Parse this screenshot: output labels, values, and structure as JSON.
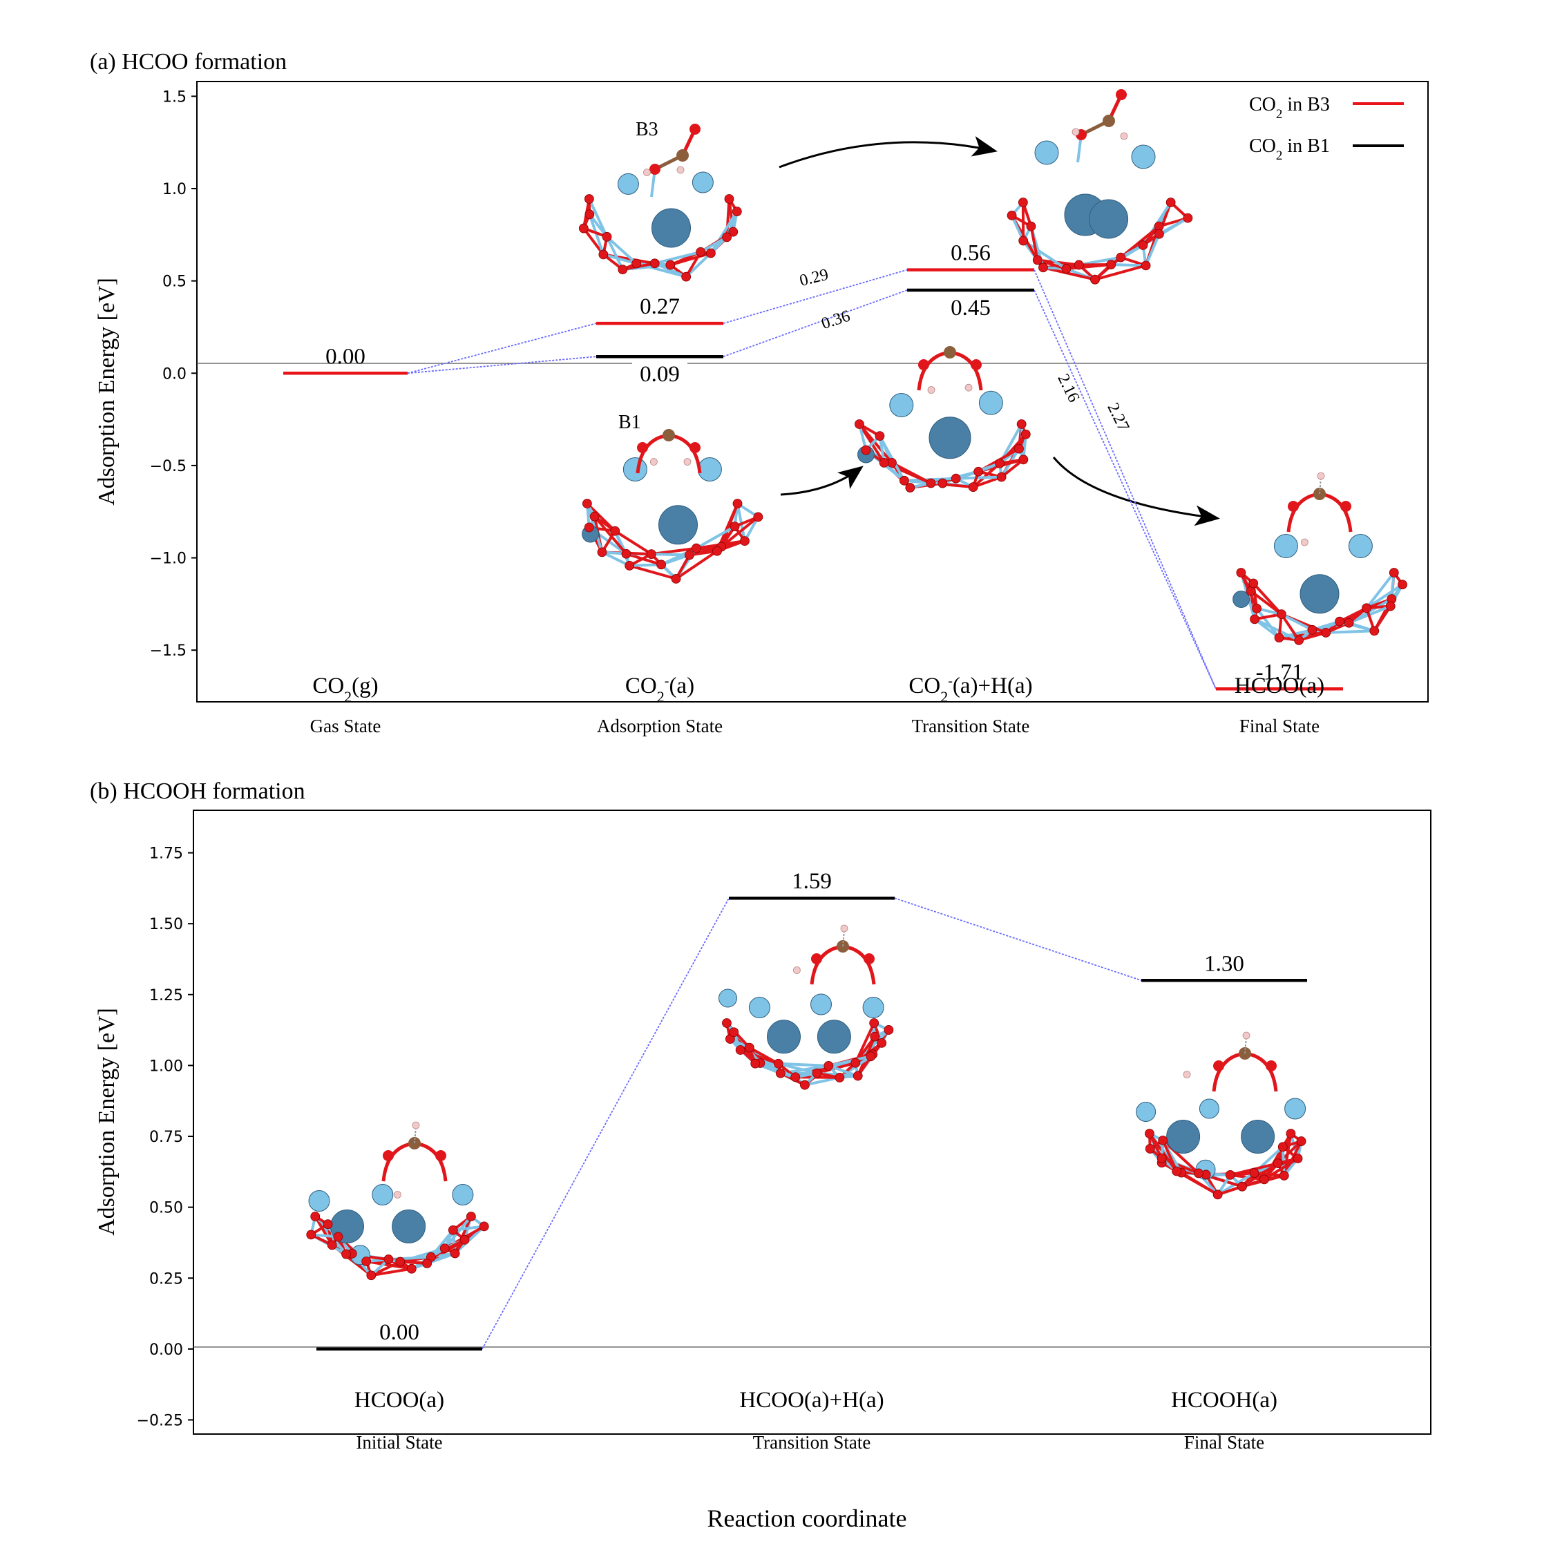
{
  "figure": {
    "xlabel": "Reaction coordinate"
  },
  "colors": {
    "b3": "#e8141a",
    "b1": "#000000",
    "connector": "#6b6bff",
    "oxygen": "#e0161b",
    "metal_light": "#7fc3e6",
    "metal_dark": "#4a7fa6",
    "carbon": "#8b5e3c",
    "hydrogen": "#f2c9c9"
  },
  "chart_data": [
    {
      "type": "line",
      "title": "(a) HCOO formation",
      "ylabel": "Adsorption Energy [eV]",
      "ylim": [
        -1.78,
        1.58
      ],
      "yticks": [
        -1.5,
        -1.0,
        -0.5,
        0.0,
        0.5,
        1.0,
        1.5
      ],
      "ytick_labels": [
        "−1.5",
        "−1.0",
        "−0.5",
        "0.0",
        "0.5",
        "1.0",
        "1.5"
      ],
      "states": [
        {
          "species_main": "CO",
          "species_sub": "2",
          "species_sup": "",
          "species_tail": "(g)",
          "stage": "Gas State"
        },
        {
          "species_main": "CO",
          "species_sub": "2",
          "species_sup": "-",
          "species_tail": "(a)",
          "stage": "Adsorption State"
        },
        {
          "species_main": "CO",
          "species_sub": "2",
          "species_sup": "-",
          "species_tail": "(a)+H(a)",
          "stage": "Transition State"
        },
        {
          "species_main": "HCOO(a)",
          "species_sub": "",
          "species_sup": "",
          "species_tail": "",
          "stage": "Final State"
        }
      ],
      "series": [
        {
          "name_main": "CO",
          "name_sub": "2",
          "name_tail": " in B3",
          "color": "#e8141a",
          "values": [
            0.0,
            0.27,
            0.56,
            -1.71
          ],
          "labels": [
            "0.00",
            "0.27",
            "0.56",
            "-1.71"
          ]
        },
        {
          "name_main": "CO",
          "name_sub": "2",
          "name_tail": " in B1",
          "color": "#000000",
          "values": [
            0.0,
            0.09,
            0.45,
            -1.71
          ],
          "labels": [
            "",
            "0.09",
            "0.45",
            ""
          ]
        }
      ],
      "barriers": [
        "0.29",
        "0.36",
        "2.16",
        "2.27"
      ],
      "structure_labels": [
        "B3",
        "B1"
      ],
      "legend": "top-right"
    },
    {
      "type": "line",
      "title": "(b) HCOOH formation",
      "ylabel": "Adsorption Energy [eV]",
      "ylim": [
        -0.3,
        1.9
      ],
      "yticks": [
        -0.25,
        0.0,
        0.25,
        0.5,
        0.75,
        1.0,
        1.25,
        1.5,
        1.75
      ],
      "ytick_labels": [
        "−0.25",
        "0.00",
        "0.25",
        "0.50",
        "0.75",
        "1.00",
        "1.25",
        "1.50",
        "1.75"
      ],
      "states": [
        {
          "species_main": "HCOO(a)",
          "stage": "Initial State"
        },
        {
          "species_main": "HCOO(a)+H(a)",
          "stage": "Transition State"
        },
        {
          "species_main": "HCOOH(a)",
          "stage": "Final State"
        }
      ],
      "series": [
        {
          "color": "#000000",
          "values": [
            0.0,
            1.59,
            1.3
          ],
          "labels": [
            "0.00",
            "1.59",
            "1.30"
          ]
        }
      ]
    }
  ]
}
